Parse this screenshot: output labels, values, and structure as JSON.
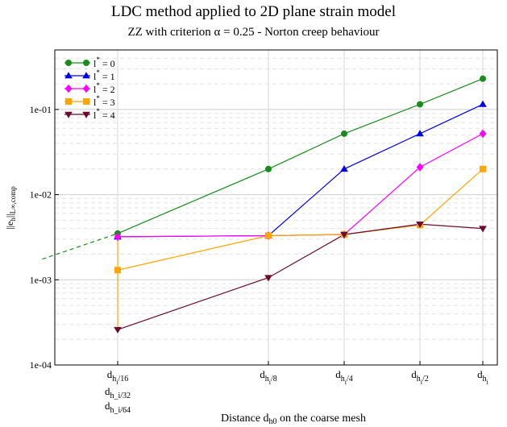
{
  "title": "LDC method applied to 2D plane strain model",
  "subtitle": "ZZ with criterion  α = 0.25 - Norton creep behaviour",
  "chart_data": {
    "type": "line",
    "title": "LDC method applied to 2D plane strain model",
    "subtitle": "ZZ with criterion  α = 0.25 - Norton creep behaviour",
    "xlabel": "Distance d_h0 on the coarse mesh",
    "ylabel": "||e_h||_L∞,comp",
    "yscale": "log",
    "ylim": [
      0.0001,
      0.5
    ],
    "grid": true,
    "legend_position": "top-left",
    "x_ticks": [
      {
        "main": "d",
        "sub": "h",
        "subsub": "i",
        "tail": "/16",
        "line2": "h_i/32",
        "line3": "h_i/64"
      },
      {
        "main": "d",
        "sub": "h",
        "subsub": "i",
        "tail": "/8"
      },
      {
        "main": "d",
        "sub": "h",
        "subsub": "i",
        "tail": "/4"
      },
      {
        "main": "d",
        "sub": "h",
        "subsub": "i",
        "tail": "/2"
      },
      {
        "main": "d",
        "sub": "h",
        "subsub": "i",
        "tail": ""
      }
    ],
    "y_ticks": [
      "1e-04",
      "1e-03",
      "1e-02",
      "1e-01"
    ],
    "x_positions": [
      0,
      3,
      4,
      5,
      6
    ],
    "series": [
      {
        "name": "l* = 0",
        "label_main": "l",
        "label_sup": "*",
        "label_tail": " = 0",
        "color": "#1a8c1a",
        "marker": "circle",
        "values": [
          0.0035,
          0.02,
          0.052,
          0.115,
          0.23
        ],
        "extrapolation": {
          "x": [
            -1.5,
            0
          ],
          "values": [
            0.00175,
            0.0035
          ]
        }
      },
      {
        "name": "l* = 1",
        "label_main": "l",
        "label_sup": "*",
        "label_tail": " = 1",
        "color": "#0000ee",
        "marker": "triangle-up",
        "values": [
          0.0032,
          0.0033,
          0.02,
          0.052,
          0.115
        ]
      },
      {
        "name": "l* = 2",
        "label_main": "l",
        "label_sup": "*",
        "label_tail": " = 2",
        "color": "#ff00ff",
        "marker": "diamond",
        "values": [
          0.0032,
          0.0033,
          0.0034,
          0.021,
          0.052
        ]
      },
      {
        "name": "l* = 3",
        "label_main": "l",
        "label_sup": "*",
        "label_tail": " = 3",
        "color": "#ffa500",
        "marker": "square",
        "values": [
          0.0013,
          0.0033,
          0.0034,
          0.0044,
          0.02
        ]
      },
      {
        "name": "l* = 4",
        "label_main": "l",
        "label_sup": "*",
        "label_tail": " = 4",
        "color": "#6b0a2e",
        "marker": "triangle-down",
        "values": [
          0.00026,
          0.00106,
          0.0034,
          0.0045,
          0.004
        ]
      }
    ],
    "extra_segments": [
      {
        "color": "#ff00ff",
        "x": [
          0,
          0
        ],
        "values": [
          0.0035,
          0.0032
        ]
      },
      {
        "color": "#ffa500",
        "x": [
          0,
          0
        ],
        "values": [
          0.0032,
          0.0013
        ]
      },
      {
        "color": "#ffa500",
        "x": [
          0,
          0
        ],
        "values": [
          0.0013,
          0.00026
        ]
      }
    ]
  }
}
